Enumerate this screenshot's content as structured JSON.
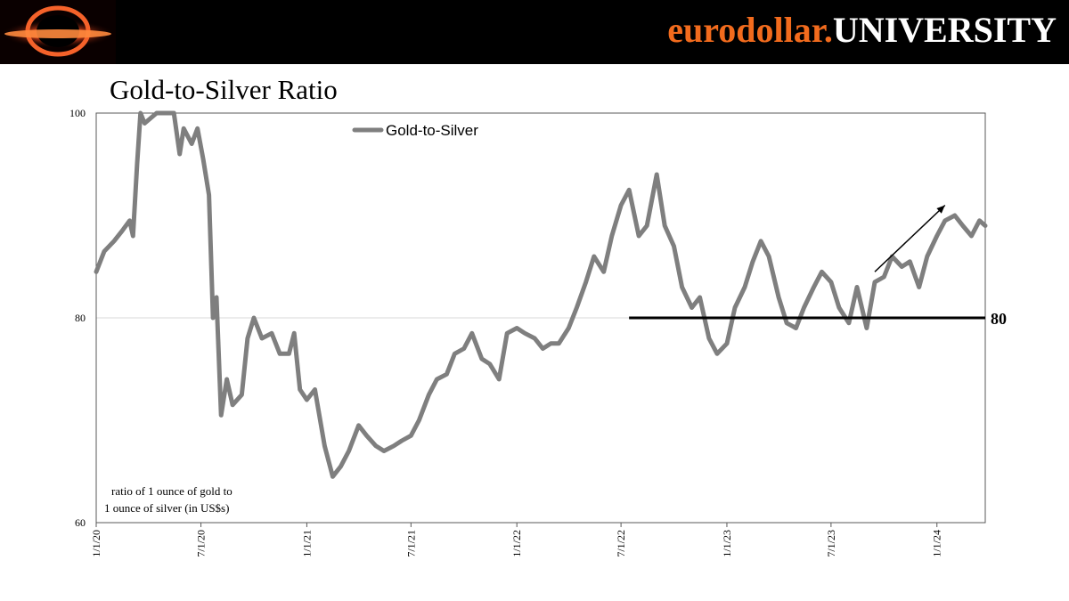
{
  "header": {
    "brand_part1": "eurodollar.",
    "brand_part2": "UNIVERSITY",
    "logo_icon": "black-hole-icon",
    "colors": {
      "background": "#000000",
      "brand_orange": "#f26b1d",
      "brand_white": "#ffffff"
    }
  },
  "chart_data": {
    "type": "line",
    "title": "Gold-to-Silver Ratio",
    "xlabel": "",
    "ylabel": "",
    "legend": "top-center",
    "annotation": [
      "ratio of 1 ounce of gold to",
      "1 ounce of silver (in US$s)"
    ],
    "ylim": [
      60,
      100
    ],
    "yticks": [
      60,
      80,
      100
    ],
    "xlim": [
      "2020-01-01",
      "2024-03-25"
    ],
    "xticks": [
      {
        "date": "2020-01-01",
        "label": "1/1/20"
      },
      {
        "date": "2020-07-01",
        "label": "7/1/20"
      },
      {
        "date": "2021-01-01",
        "label": "1/1/21"
      },
      {
        "date": "2021-07-01",
        "label": "7/1/21"
      },
      {
        "date": "2022-01-01",
        "label": "1/1/22"
      },
      {
        "date": "2022-07-01",
        "label": "7/1/22"
      },
      {
        "date": "2023-01-01",
        "label": "1/1/23"
      },
      {
        "date": "2023-07-01",
        "label": "7/1/23"
      },
      {
        "date": "2024-01-01",
        "label": "1/1/24"
      }
    ],
    "grid": "y",
    "reference_line": {
      "y": 80,
      "from": "2022-07-15",
      "label": "80"
    },
    "trend_arrow": {
      "from": {
        "date": "2023-09-15",
        "y": 84.5
      },
      "to": {
        "date": "2024-01-15",
        "y": 91
      }
    },
    "colors": {
      "series": "#7f7f7f",
      "reference": "#000000",
      "arrow": "#000000",
      "grid": "#d9d9d9"
    },
    "series": [
      {
        "name": "Gold-to-Silver",
        "points": [
          [
            "2020-01-01",
            84.5
          ],
          [
            "2020-01-15",
            86.5
          ],
          [
            "2020-02-01",
            87.5
          ],
          [
            "2020-02-15",
            88.5
          ],
          [
            "2020-02-28",
            89.5
          ],
          [
            "2020-03-05",
            88.0
          ],
          [
            "2020-03-12",
            95.0
          ],
          [
            "2020-03-18",
            100.0
          ],
          [
            "2020-03-25",
            99.0
          ],
          [
            "2020-04-15",
            100.0
          ],
          [
            "2020-05-15",
            100.0
          ],
          [
            "2020-05-25",
            96.0
          ],
          [
            "2020-06-01",
            98.5
          ],
          [
            "2020-06-15",
            97.0
          ],
          [
            "2020-06-25",
            98.5
          ],
          [
            "2020-07-05",
            95.5
          ],
          [
            "2020-07-15",
            92.0
          ],
          [
            "2020-07-22",
            80.0
          ],
          [
            "2020-07-28",
            82.0
          ],
          [
            "2020-08-05",
            70.5
          ],
          [
            "2020-08-15",
            74.0
          ],
          [
            "2020-08-25",
            71.5
          ],
          [
            "2020-09-10",
            72.5
          ],
          [
            "2020-09-20",
            78.0
          ],
          [
            "2020-10-01",
            80.0
          ],
          [
            "2020-10-15",
            78.0
          ],
          [
            "2020-11-01",
            78.5
          ],
          [
            "2020-11-15",
            76.5
          ],
          [
            "2020-12-01",
            76.5
          ],
          [
            "2020-12-10",
            78.5
          ],
          [
            "2020-12-20",
            73.0
          ],
          [
            "2021-01-01",
            72.0
          ],
          [
            "2021-01-15",
            73.0
          ],
          [
            "2021-02-01",
            67.5
          ],
          [
            "2021-02-15",
            64.5
          ],
          [
            "2021-03-01",
            65.5
          ],
          [
            "2021-03-15",
            67.0
          ],
          [
            "2021-04-01",
            69.5
          ],
          [
            "2021-04-15",
            68.5
          ],
          [
            "2021-05-01",
            67.5
          ],
          [
            "2021-05-15",
            67.0
          ],
          [
            "2021-06-01",
            67.5
          ],
          [
            "2021-06-15",
            68.0
          ],
          [
            "2021-07-01",
            68.5
          ],
          [
            "2021-07-15",
            70.0
          ],
          [
            "2021-08-01",
            72.5
          ],
          [
            "2021-08-15",
            74.0
          ],
          [
            "2021-09-01",
            74.5
          ],
          [
            "2021-09-15",
            76.5
          ],
          [
            "2021-10-01",
            77.0
          ],
          [
            "2021-10-15",
            78.5
          ],
          [
            "2021-11-01",
            76.0
          ],
          [
            "2021-11-15",
            75.5
          ],
          [
            "2021-12-01",
            74.0
          ],
          [
            "2021-12-15",
            78.5
          ],
          [
            "2022-01-01",
            79.0
          ],
          [
            "2022-01-15",
            78.5
          ],
          [
            "2022-02-01",
            78.0
          ],
          [
            "2022-02-15",
            77.0
          ],
          [
            "2022-03-01",
            77.5
          ],
          [
            "2022-03-15",
            77.5
          ],
          [
            "2022-04-01",
            79.0
          ],
          [
            "2022-04-15",
            81.0
          ],
          [
            "2022-05-01",
            83.5
          ],
          [
            "2022-05-15",
            86.0
          ],
          [
            "2022-06-01",
            84.5
          ],
          [
            "2022-06-15",
            88.0
          ],
          [
            "2022-07-01",
            91.0
          ],
          [
            "2022-07-15",
            92.5
          ],
          [
            "2022-08-01",
            88.0
          ],
          [
            "2022-08-15",
            89.0
          ],
          [
            "2022-09-01",
            94.0
          ],
          [
            "2022-09-15",
            89.0
          ],
          [
            "2022-10-01",
            87.0
          ],
          [
            "2022-10-15",
            83.0
          ],
          [
            "2022-11-01",
            81.0
          ],
          [
            "2022-11-15",
            82.0
          ],
          [
            "2022-12-01",
            78.0
          ],
          [
            "2022-12-15",
            76.5
          ],
          [
            "2023-01-01",
            77.5
          ],
          [
            "2023-01-15",
            81.0
          ],
          [
            "2023-02-01",
            83.0
          ],
          [
            "2023-02-15",
            85.5
          ],
          [
            "2023-03-01",
            87.5
          ],
          [
            "2023-03-15",
            86.0
          ],
          [
            "2023-04-01",
            82.0
          ],
          [
            "2023-04-15",
            79.5
          ],
          [
            "2023-05-01",
            79.0
          ],
          [
            "2023-05-15",
            81.0
          ],
          [
            "2023-06-01",
            83.0
          ],
          [
            "2023-06-15",
            84.5
          ],
          [
            "2023-07-01",
            83.5
          ],
          [
            "2023-07-15",
            81.0
          ],
          [
            "2023-08-01",
            79.5
          ],
          [
            "2023-08-15",
            83.0
          ],
          [
            "2023-09-01",
            79.0
          ],
          [
            "2023-09-15",
            83.5
          ],
          [
            "2023-10-01",
            84.0
          ],
          [
            "2023-10-15",
            86.0
          ],
          [
            "2023-11-01",
            85.0
          ],
          [
            "2023-11-15",
            85.5
          ],
          [
            "2023-12-01",
            83.0
          ],
          [
            "2023-12-15",
            86.0
          ],
          [
            "2024-01-01",
            88.0
          ],
          [
            "2024-01-15",
            89.5
          ],
          [
            "2024-02-01",
            90.0
          ],
          [
            "2024-02-15",
            89.0
          ],
          [
            "2024-03-01",
            88.0
          ],
          [
            "2024-03-15",
            89.5
          ],
          [
            "2024-03-25",
            89.0
          ]
        ]
      }
    ]
  }
}
